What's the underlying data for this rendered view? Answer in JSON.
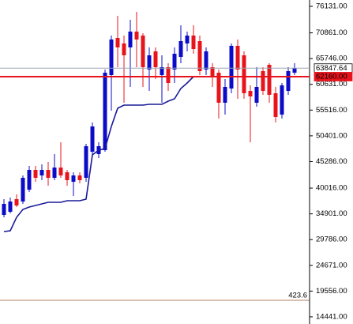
{
  "chart_data": {
    "type": "candlestick",
    "categories": [
      null,
      null,
      null,
      null,
      null,
      null,
      null,
      null,
      null,
      null,
      null,
      null,
      null,
      null,
      null,
      null,
      null,
      null,
      null,
      null,
      null,
      null,
      null,
      null,
      null,
      null,
      null,
      null,
      null,
      null,
      null,
      null,
      null,
      null,
      null,
      null,
      null,
      null,
      null,
      null,
      null,
      null,
      null,
      null,
      null,
      null,
      null
    ],
    "open": [
      34683,
      35311,
      37823,
      37352,
      39707,
      43632,
      42533,
      43632,
      42062,
      44103,
      43161,
      41277,
      42533,
      42062,
      47243,
      46772,
      47557,
      62472,
      69851,
      68752,
      67967,
      71107,
      70322,
      63571,
      67182,
      62472,
      64042,
      63571,
      66083,
      68752,
      70322,
      69223,
      63571,
      64042,
      62943,
      56977,
      59803,
      68281,
      66397,
      59332,
      56977,
      63257,
      64513,
      58861,
      54622,
      59332,
      62943
    ],
    "high": [
      37823,
      38137,
      38765,
      42533,
      44417,
      44417,
      44731,
      45202,
      46772,
      49127,
      43632,
      43161,
      43161,
      48813,
      53052,
      49127,
      63571,
      70322,
      74247,
      70322,
      73462,
      75032,
      70793,
      67967,
      67967,
      66397,
      64827,
      67967,
      72363,
      71107,
      72363,
      70322,
      67967,
      64827,
      63571,
      61687,
      68752,
      69537,
      67182,
      60431,
      64042,
      64042,
      64827,
      60117,
      60902,
      64042,
      64827
    ],
    "low": [
      34212,
      34997,
      36253,
      36881,
      39236,
      41277,
      41591,
      40492,
      41591,
      42062,
      40492,
      38451,
      40963,
      41277,
      46301,
      45987,
      47243,
      55407,
      64042,
      56977,
      60117,
      64042,
      60117,
      59332,
      61687,
      56977,
      59332,
      60902,
      64827,
      67182,
      66711,
      62472,
      62472,
      60117,
      53837,
      54622,
      58861,
      57762,
      57762,
      49127,
      56192,
      58547,
      56977,
      53052,
      53837,
      58547,
      62472
    ],
    "close": [
      36881,
      37352,
      36567,
      42062,
      43632,
      42062,
      43632,
      42062,
      44103,
      42533,
      41591,
      42533,
      41591,
      48342,
      52267,
      48342,
      62943,
      69537,
      67967,
      66397,
      71107,
      69537,
      64042,
      66397,
      64042,
      64042,
      60902,
      66711,
      69223,
      70322,
      67653,
      63257,
      67182,
      62001,
      56977,
      60117,
      68281,
      63571,
      58861,
      58233,
      60117,
      59332,
      58547,
      54151,
      60431,
      63257,
      63847.64
    ],
    "up_color": "#0b0bc8",
    "down_color": "#e8141c",
    "line": {
      "color": "#1a1a9a",
      "values": [
        31386,
        31543,
        34212,
        35782,
        36253,
        36567,
        36881,
        37195,
        37195,
        37195,
        37509,
        37509,
        37509,
        37823,
        46615,
        47557,
        47871,
        52267,
        55878,
        56506,
        56506,
        56506,
        56506,
        56663,
        56663,
        56663,
        57291,
        57762,
        59803,
        60902,
        62158,
        null,
        null,
        null,
        null,
        null,
        null,
        null,
        null,
        null,
        null,
        null,
        null,
        null,
        null,
        null,
        null
      ]
    },
    "hlines": [
      {
        "label": "63847.64",
        "value": 63847.64,
        "color": "#9aa6b0"
      },
      {
        "label": "62160.00",
        "value": 62160,
        "color": "#e8141c"
      }
    ],
    "indicator_label": "423.6",
    "ylim": [
      13017,
      77387
    ],
    "yticks": [
      {
        "value": 76131,
        "label": "76131.00"
      },
      {
        "value": 70861,
        "label": "70861.00"
      },
      {
        "value": 65746,
        "label": "65746.00"
      },
      {
        "value": 60631,
        "label": "60631.00"
      },
      {
        "value": 55516,
        "label": "55516.00"
      },
      {
        "value": 50401,
        "label": "50401.00"
      },
      {
        "value": 45286,
        "label": "45286.00"
      },
      {
        "value": 40016,
        "label": "40016.00"
      },
      {
        "value": 34901,
        "label": "34901.00"
      },
      {
        "value": 29786,
        "label": "29786.00"
      },
      {
        "value": 24671,
        "label": "24671.00"
      },
      {
        "value": 19556,
        "label": "19556.00"
      },
      {
        "value": 14441,
        "label": "14441.00"
      }
    ]
  }
}
